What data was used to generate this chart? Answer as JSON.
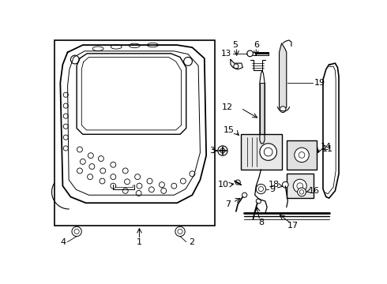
{
  "bg_color": "#ffffff",
  "line_color": "#000000",
  "text_color": "#000000",
  "fig_width": 4.9,
  "fig_height": 3.6,
  "dpi": 100
}
